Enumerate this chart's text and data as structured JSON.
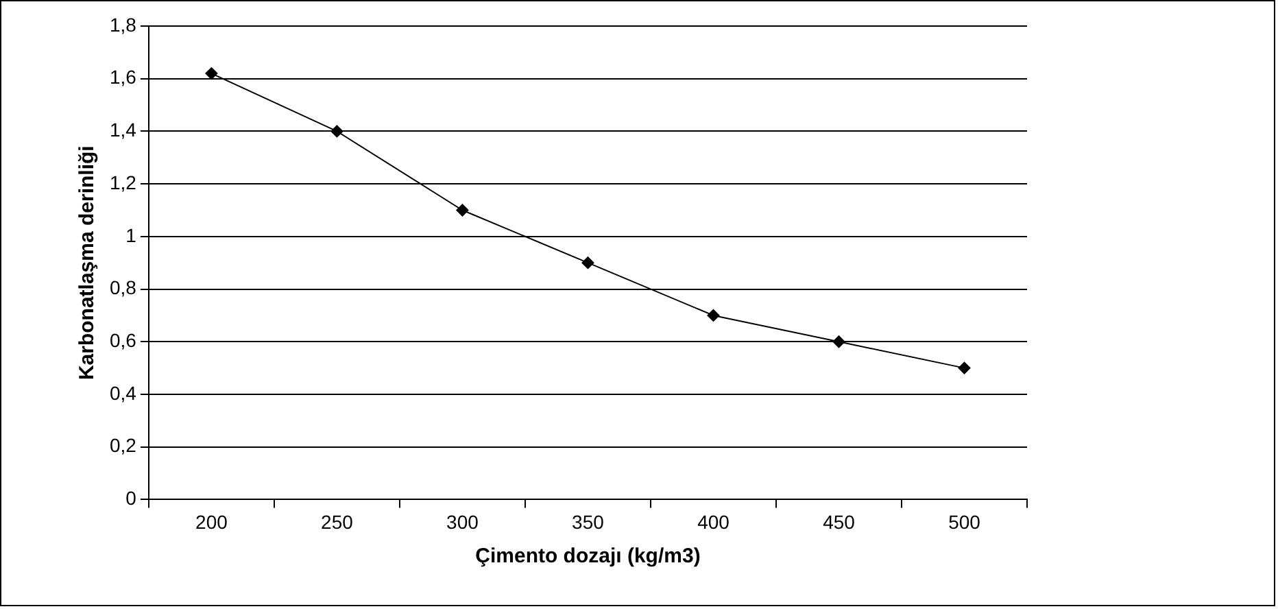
{
  "chart_data": {
    "type": "line",
    "categories": [
      "200",
      "250",
      "300",
      "350",
      "400",
      "450",
      "500"
    ],
    "series": [
      {
        "color": "#000000",
        "values": [
          1.62,
          1.4,
          1.1,
          0.9,
          0.7,
          0.6,
          0.5
        ]
      }
    ],
    "xlabel": "Çimento dozajı (kg/m3)",
    "ylabel": "Karbonatlaşma derinliği",
    "ylim": [
      0,
      1.8
    ],
    "yticks": [
      0,
      {
        "value": 0.2,
        "label": "0,2"
      },
      {
        "value": 0.4,
        "label": "0,4"
      },
      {
        "value": 0.6,
        "label": "0,6"
      },
      {
        "value": 0.8,
        "label": "0,8"
      },
      1,
      {
        "value": 1.2,
        "label": "1,2"
      },
      {
        "value": 1.4,
        "label": "1,4"
      },
      {
        "value": 1.6,
        "label": "1,6"
      },
      {
        "value": 1.8,
        "label": "1,8"
      }
    ],
    "grid": "y",
    "legend": false,
    "marker": "diamond",
    "line_style": "solid"
  }
}
